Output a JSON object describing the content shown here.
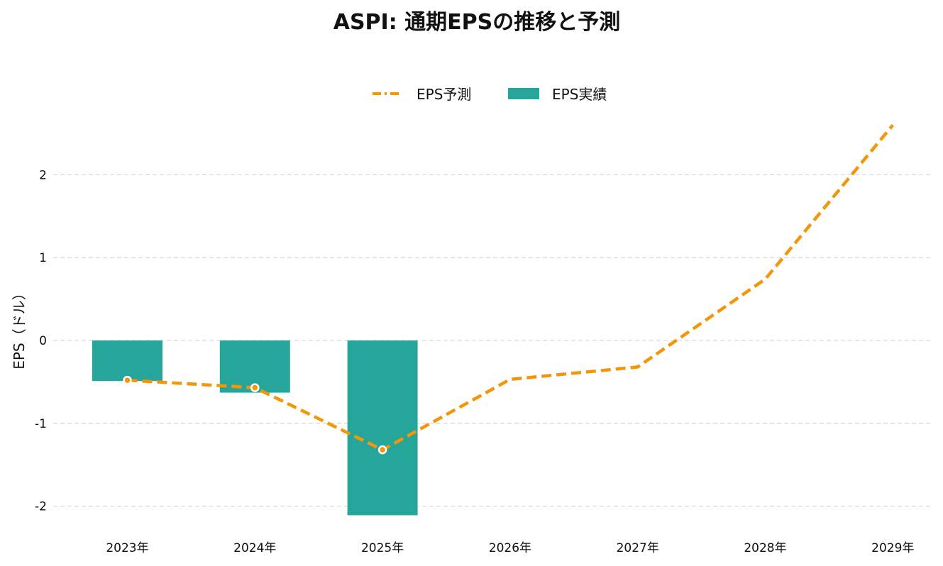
{
  "chart_data": {
    "type": "bar",
    "title": "ASPI: 通期EPSの推移と予測",
    "xlabel": "",
    "ylabel": "EPS（ドル）",
    "categories": [
      "2023年",
      "2024年",
      "2025年",
      "2026年",
      "2027年",
      "2028年",
      "2029年"
    ],
    "ylim": [
      -2.25,
      2.7
    ],
    "yticks": [
      -2,
      -1,
      0,
      1,
      2
    ],
    "grid": true,
    "legend_position": "top-center",
    "series": [
      {
        "name": "EPS予測",
        "kind": "line",
        "style": "dashed",
        "color": "#F5950A",
        "values": [
          -0.48,
          -0.57,
          -1.32,
          -0.47,
          -0.32,
          0.74,
          2.6
        ],
        "markers_on_indices": [
          0,
          1,
          2
        ]
      },
      {
        "name": "EPS実績",
        "kind": "bar",
        "color": "#26A69A",
        "values": [
          -0.49,
          -0.63,
          -2.11,
          null,
          null,
          null,
          null
        ]
      }
    ]
  }
}
